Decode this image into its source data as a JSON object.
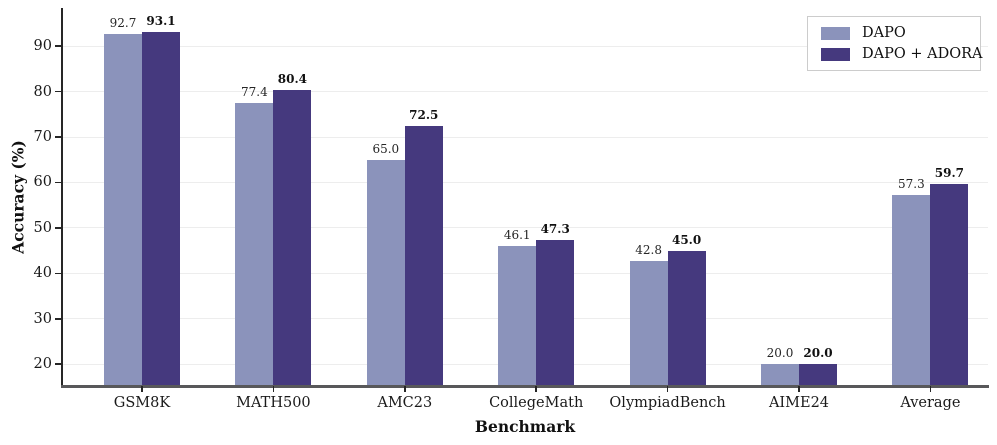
{
  "chart_data": {
    "type": "bar",
    "title": "",
    "xlabel": "Benchmark",
    "ylabel": "Accuracy (%)",
    "categories": [
      "GSM8K",
      "MATH500",
      "AMC23",
      "CollegeMath",
      "OlympiadBench",
      "AIME24",
      "Average"
    ],
    "series": [
      {
        "name": "DAPO",
        "color": "#8b93bb",
        "bold_labels": false,
        "values": [
          92.7,
          77.4,
          65.0,
          46.1,
          42.8,
          20.0,
          57.3
        ]
      },
      {
        "name": "DAPO + ADORA",
        "color": "#45397e",
        "bold_labels": true,
        "values": [
          93.1,
          80.4,
          72.5,
          47.3,
          45.0,
          20.0,
          59.7
        ]
      }
    ],
    "yticks": [
      20,
      30,
      40,
      50,
      60,
      70,
      80,
      90
    ],
    "ylim": [
      15.2,
      98.4
    ],
    "grid": "horizontal",
    "legend_position": "upper right",
    "value_label_format": "one_decimal"
  },
  "colors": {
    "background": "#ffffff",
    "gridline": "#ededed",
    "left_spine": "#262626",
    "bottom_spine": "#58585a",
    "tick_text": "#1a1a1a",
    "legend_border": "#cccccc"
  }
}
